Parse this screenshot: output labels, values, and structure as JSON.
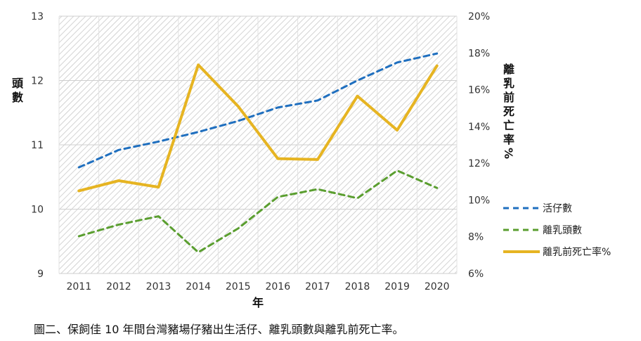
{
  "caption": "圖二、保飼佳 10 年間台灣豬場仔豬出生活仔、離乳頭數與離乳前死亡率。",
  "chart_data": {
    "type": "line",
    "x": [
      "2011",
      "2012",
      "2013",
      "2014",
      "2015",
      "2016",
      "2017",
      "2018",
      "2019",
      "2020"
    ],
    "xlabel": "年",
    "ylabel_left": "頭數",
    "ylabel_right": "離乳前死亡率%",
    "ylim_left": [
      9,
      13
    ],
    "yticks_left": [
      "9",
      "10",
      "11",
      "12",
      "13"
    ],
    "ylim_right": [
      6,
      20
    ],
    "yticks_right": [
      "6%",
      "8%",
      "10%",
      "12%",
      "14%",
      "16%",
      "18%",
      "20%"
    ],
    "grid": true,
    "legend_position": "right",
    "series": [
      {
        "name": "活仔數",
        "axis": "left",
        "style": "dashed",
        "color": "#1f6fbf",
        "values": [
          10.65,
          10.92,
          11.05,
          11.2,
          11.37,
          11.58,
          11.69,
          12.0,
          12.28,
          12.42
        ]
      },
      {
        "name": "離乳頭數",
        "axis": "left",
        "style": "dashed",
        "color": "#5a9e2f",
        "values": [
          9.58,
          9.76,
          9.89,
          9.33,
          9.7,
          10.19,
          10.31,
          10.17,
          10.6,
          10.33
        ]
      },
      {
        "name": "離乳前死亡率%",
        "axis": "right",
        "style": "solid",
        "color": "#e6b422",
        "values": [
          10.5,
          11.05,
          10.7,
          17.35,
          15.1,
          12.25,
          12.2,
          15.65,
          13.8,
          17.3
        ]
      }
    ]
  }
}
